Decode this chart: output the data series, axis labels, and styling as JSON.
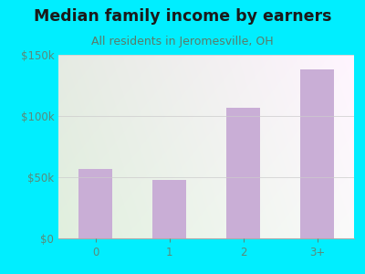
{
  "title": "Median family income by earners",
  "subtitle": "All residents in Jeromesville, OH",
  "categories": [
    "0",
    "1",
    "2",
    "3+"
  ],
  "values": [
    57000,
    48000,
    107000,
    138000
  ],
  "bar_color": "#c9aed6",
  "ylim": [
    0,
    150000
  ],
  "yticks": [
    0,
    50000,
    100000,
    150000
  ],
  "ytick_labels": [
    "$0",
    "$50k",
    "$100k",
    "$150k"
  ],
  "background_outer": "#00eeff",
  "bg_topleft": "#d8edd8",
  "bg_topright": "#e8eef2",
  "bg_bottomleft": "#e8f5e0",
  "bg_bottomright": "#f5f5f8",
  "title_color": "#1a1a1a",
  "subtitle_color": "#5a7a6a",
  "tick_color": "#5a8a7a",
  "title_fontsize": 12.5,
  "subtitle_fontsize": 9,
  "tick_fontsize": 8.5,
  "bar_width": 0.45
}
